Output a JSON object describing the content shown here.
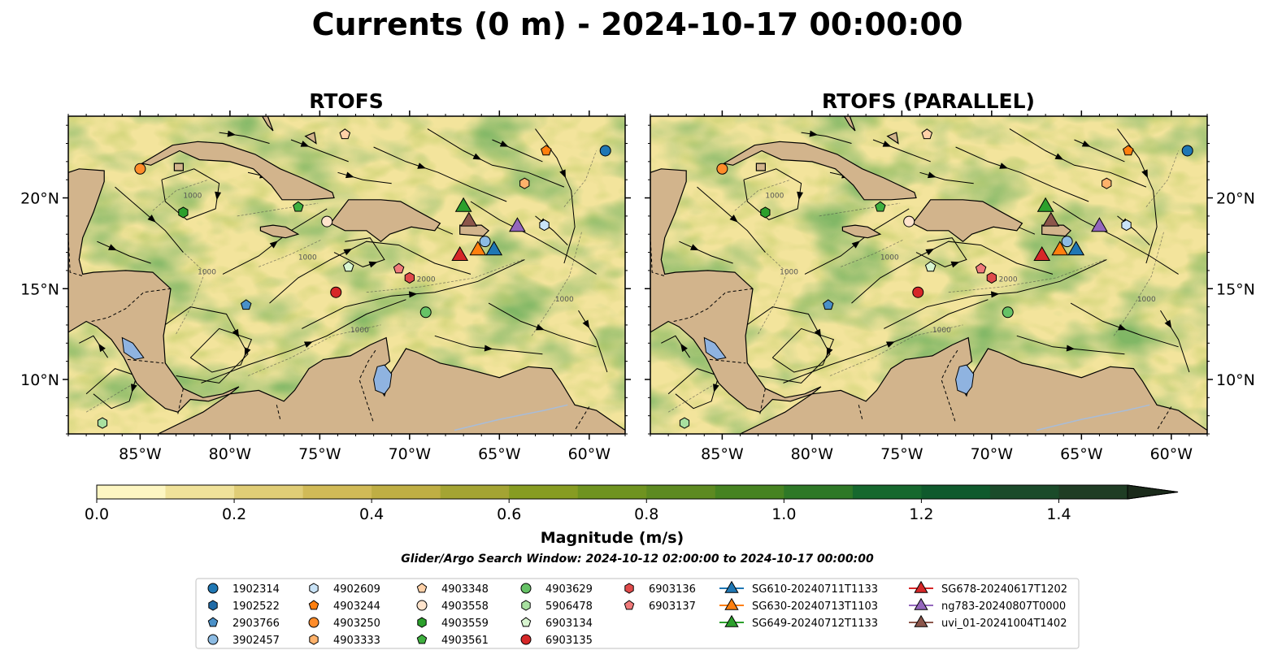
{
  "title": "Currents (0 m) - 2024-10-17 00:00:00",
  "subtitle": "Glider/Argo Search Window: 2024-10-12 02:00:00 to 2024-10-17 00:00:00",
  "colorbar": {
    "label": "Magnitude (m/s)",
    "min": 0.0,
    "max": 1.5,
    "step": 0.1,
    "extend": "max",
    "ticks": [
      0.0,
      0.2,
      0.4,
      0.6,
      0.8,
      1.0,
      1.2,
      1.4
    ],
    "tick_labels": [
      "0.0",
      "0.2",
      "0.4",
      "0.6",
      "0.8",
      "1.0",
      "1.2",
      "1.4"
    ],
    "colors": [
      "#fdf6c2",
      "#f0e29a",
      "#e0cd76",
      "#d1ba57",
      "#bfae44",
      "#a4a433",
      "#879c22",
      "#6f9320",
      "#5d8a21",
      "#468321",
      "#2e7827",
      "#16682e",
      "#0f5a2d",
      "#1b4b2a",
      "#1f3d24"
    ]
  },
  "chart_data": {
    "type": "scatter",
    "xlim": [
      -89,
      -58
    ],
    "ylim": [
      7,
      24.5
    ],
    "x_ticks": [
      -85,
      -80,
      -75,
      -70,
      -65,
      -60
    ],
    "x_tick_labels": [
      "85°W",
      "80°W",
      "75°W",
      "70°W",
      "65°W",
      "60°W"
    ],
    "y_ticks": [
      10,
      15,
      20
    ],
    "y_tick_labels": [
      "10°N",
      "15°N",
      "20°N"
    ],
    "panels": [
      {
        "title": "RTOFS"
      },
      {
        "title": "RTOFS (PARALLEL)"
      }
    ],
    "legend_placement": "lower-center",
    "series": [
      {
        "name": "1902314",
        "marker": "circle",
        "color": "#1f77b4",
        "lon": -59.1,
        "lat": 22.6
      },
      {
        "name": "1902522",
        "marker": "hexagon",
        "color": "#1f6aa6",
        "lon": null,
        "lat": null
      },
      {
        "name": "2903766",
        "marker": "pentagon",
        "color": "#4a90c8",
        "lon": -79.1,
        "lat": 14.1
      },
      {
        "name": "3902457",
        "marker": "circle",
        "color": "#8cbbe3",
        "lon": -65.8,
        "lat": 17.6
      },
      {
        "name": "4902609",
        "marker": "hexagon",
        "color": "#c9e3f7",
        "lon": -62.5,
        "lat": 18.5
      },
      {
        "name": "4903244",
        "marker": "pentagon",
        "color": "#ff7f0e",
        "lon": -62.4,
        "lat": 22.6
      },
      {
        "name": "4903250",
        "marker": "circle",
        "color": "#ff8c2a",
        "lon": -85.0,
        "lat": 21.6
      },
      {
        "name": "4903333",
        "marker": "hexagon",
        "color": "#ffb26b",
        "lon": -63.6,
        "lat": 20.8
      },
      {
        "name": "4903348",
        "marker": "pentagon",
        "color": "#ffd1a8",
        "lon": -73.6,
        "lat": 23.5
      },
      {
        "name": "4903558",
        "marker": "circle",
        "color": "#ffe4cc",
        "lon": -74.6,
        "lat": 18.7
      },
      {
        "name": "4903559",
        "marker": "hexagon",
        "color": "#2ca02c",
        "lon": -82.6,
        "lat": 19.2
      },
      {
        "name": "4903561",
        "marker": "pentagon",
        "color": "#3fb03f",
        "lon": -76.2,
        "lat": 19.5
      },
      {
        "name": "4903629",
        "marker": "circle",
        "color": "#66c266",
        "lon": -69.1,
        "lat": 13.7
      },
      {
        "name": "5906478",
        "marker": "hexagon",
        "color": "#a8e0a0",
        "lon": -87.1,
        "lat": 7.6
      },
      {
        "name": "6903134",
        "marker": "pentagon",
        "color": "#d8f5d0",
        "lon": -73.4,
        "lat": 16.2
      },
      {
        "name": "6903135",
        "marker": "circle",
        "color": "#d62728",
        "lon": -74.1,
        "lat": 14.8
      },
      {
        "name": "6903136",
        "marker": "hexagon",
        "color": "#e04a4a",
        "lon": -70.0,
        "lat": 15.6
      },
      {
        "name": "6903137",
        "marker": "pentagon",
        "color": "#f07a7a",
        "lon": -70.6,
        "lat": 16.1
      },
      {
        "name": "SG610-20240711T1133",
        "marker": "triangle",
        "color": "#1f77b4",
        "lon": -65.3,
        "lat": 17.2
      },
      {
        "name": "SG630-20240713T1103",
        "marker": "triangle",
        "color": "#ff7f0e",
        "lon": -66.2,
        "lat": 17.2
      },
      {
        "name": "SG649-20240712T1133",
        "marker": "triangle",
        "color": "#2ca02c",
        "lon": -67.0,
        "lat": 19.6
      },
      {
        "name": "SG678-20240617T1202",
        "marker": "triangle",
        "color": "#d62728",
        "lon": -67.2,
        "lat": 16.9
      },
      {
        "name": "ng783-20240807T0000",
        "marker": "triangle",
        "color": "#9467bd",
        "lon": -64.0,
        "lat": 18.5
      },
      {
        "name": "uvi_01-20241004T1402",
        "marker": "triangle",
        "color": "#8c564b",
        "lon": -66.7,
        "lat": 18.8
      }
    ]
  }
}
